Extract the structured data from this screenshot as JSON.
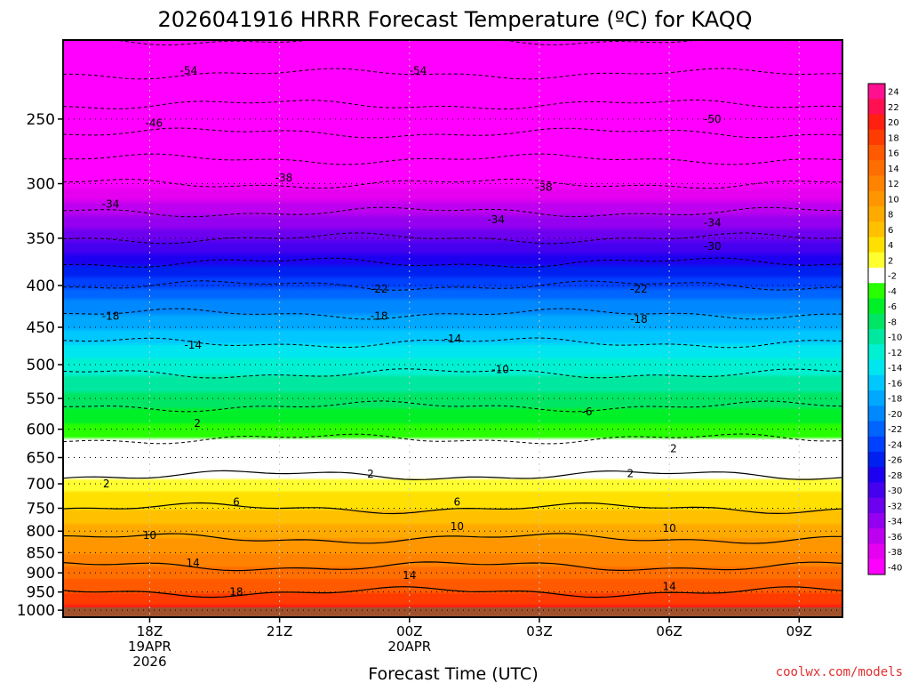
{
  "chart_data": {
    "type": "heatmap",
    "title": "2026041916 HRRR Forecast Temperature (ºC) for KAQQ",
    "xlabel": "Forecast Time (UTC)",
    "ylabel": "",
    "credit": "coolwx.com/models",
    "x_ticks": [
      {
        "label": "18Z",
        "sub1": "19APR",
        "sub2": "2026",
        "hour": 2
      },
      {
        "label": "21Z",
        "sub1": "",
        "sub2": "",
        "hour": 5
      },
      {
        "label": "00Z",
        "sub1": "20APR",
        "sub2": "",
        "hour": 8
      },
      {
        "label": "03Z",
        "sub1": "",
        "sub2": "",
        "hour": 11
      },
      {
        "label": "06Z",
        "sub1": "",
        "sub2": "",
        "hour": 14
      },
      {
        "label": "09Z",
        "sub1": "",
        "sub2": "",
        "hour": 17
      }
    ],
    "x_range_hours": [
      0,
      18
    ],
    "y_axis": "pressure (hPa), reversed, log-like",
    "y_ticks": [
      250,
      300,
      350,
      400,
      450,
      500,
      550,
      600,
      650,
      700,
      750,
      800,
      850,
      900,
      950,
      1000
    ],
    "y_range": [
      200,
      1020
    ],
    "grid": true,
    "colorbar_labels": [
      24,
      22,
      20,
      18,
      16,
      14,
      12,
      10,
      8,
      6,
      4,
      2,
      -2,
      -4,
      -6,
      -8,
      -10,
      -12,
      -14,
      -16,
      -18,
      -20,
      -22,
      -24,
      -26,
      -28,
      -30,
      -32,
      -34,
      -36,
      -38,
      -40
    ],
    "colorbar_colors": [
      "#ff1090",
      "#ff1050",
      "#ff2010",
      "#ff3c00",
      "#ff5a00",
      "#ff6e00",
      "#ff8200",
      "#ff9600",
      "#ffaa00",
      "#ffc000",
      "#ffe000",
      "#ffff30",
      "#ffffff",
      "#28ff00",
      "#00f028",
      "#00e664",
      "#00e8a0",
      "#00f0d2",
      "#00e6f0",
      "#00c8ff",
      "#00a8ff",
      "#0088ff",
      "#0064ff",
      "#0040ff",
      "#0020f0",
      "#1e00f0",
      "#4600f0",
      "#6e00f0",
      "#9600f0",
      "#be00f0",
      "#e600f0",
      "#ff00ff"
    ],
    "temperature_profile": [
      {
        "p": 200,
        "t": -58
      },
      {
        "p": 250,
        "t": -48
      },
      {
        "p": 300,
        "t": -38
      },
      {
        "p": 350,
        "t": -30
      },
      {
        "p": 400,
        "t": -22
      },
      {
        "p": 450,
        "t": -16
      },
      {
        "p": 500,
        "t": -11
      },
      {
        "p": 550,
        "t": -7
      },
      {
        "p": 600,
        "t": -3
      },
      {
        "p": 650,
        "t": 0
      },
      {
        "p": 700,
        "t": 3
      },
      {
        "p": 750,
        "t": 6
      },
      {
        "p": 800,
        "t": 9
      },
      {
        "p": 850,
        "t": 12
      },
      {
        "p": 900,
        "t": 15
      },
      {
        "p": 950,
        "t": 18
      },
      {
        "p": 1000,
        "t": 21
      }
    ],
    "contour_labels": [
      {
        "text": "-54",
        "hour": 2.9,
        "p": 218
      },
      {
        "text": "-54",
        "hour": 8.2,
        "p": 218
      },
      {
        "text": "-46",
        "hour": 2.1,
        "p": 253
      },
      {
        "text": "-50",
        "hour": 15.0,
        "p": 250
      },
      {
        "text": "-38",
        "hour": 5.1,
        "p": 295
      },
      {
        "text": "-38",
        "hour": 11.1,
        "p": 303
      },
      {
        "text": "-34",
        "hour": 1.1,
        "p": 318
      },
      {
        "text": "-34",
        "hour": 10.0,
        "p": 332
      },
      {
        "text": "-34",
        "hour": 15.0,
        "p": 335
      },
      {
        "text": "-30",
        "hour": 15.0,
        "p": 358
      },
      {
        "text": "-22",
        "hour": 7.3,
        "p": 404
      },
      {
        "text": "-22",
        "hour": 13.3,
        "p": 404
      },
      {
        "text": "-18",
        "hour": 1.1,
        "p": 436
      },
      {
        "text": "-18",
        "hour": 7.3,
        "p": 436
      },
      {
        "text": "-18",
        "hour": 13.3,
        "p": 440
      },
      {
        "text": "-14",
        "hour": 3.0,
        "p": 473
      },
      {
        "text": "-14",
        "hour": 9.0,
        "p": 465
      },
      {
        "text": "-10",
        "hour": 10.1,
        "p": 507
      },
      {
        "text": "-6",
        "hour": 12.1,
        "p": 571
      },
      {
        "text": "2",
        "hour": 3.1,
        "p": 590
      },
      {
        "text": "2",
        "hour": 14.1,
        "p": 634
      },
      {
        "text": "2",
        "hour": 1.0,
        "p": 700
      },
      {
        "text": "2",
        "hour": 7.1,
        "p": 681
      },
      {
        "text": "2",
        "hour": 13.1,
        "p": 680
      },
      {
        "text": "6",
        "hour": 4.0,
        "p": 737
      },
      {
        "text": "6",
        "hour": 9.1,
        "p": 737
      },
      {
        "text": "10",
        "hour": 2.0,
        "p": 810
      },
      {
        "text": "10",
        "hour": 9.1,
        "p": 790
      },
      {
        "text": "10",
        "hour": 14.0,
        "p": 794
      },
      {
        "text": "14",
        "hour": 3.0,
        "p": 875
      },
      {
        "text": "14",
        "hour": 8.0,
        "p": 906
      },
      {
        "text": "14",
        "hour": 14.0,
        "p": 935
      },
      {
        "text": "18",
        "hour": 4.0,
        "p": 950
      }
    ]
  }
}
